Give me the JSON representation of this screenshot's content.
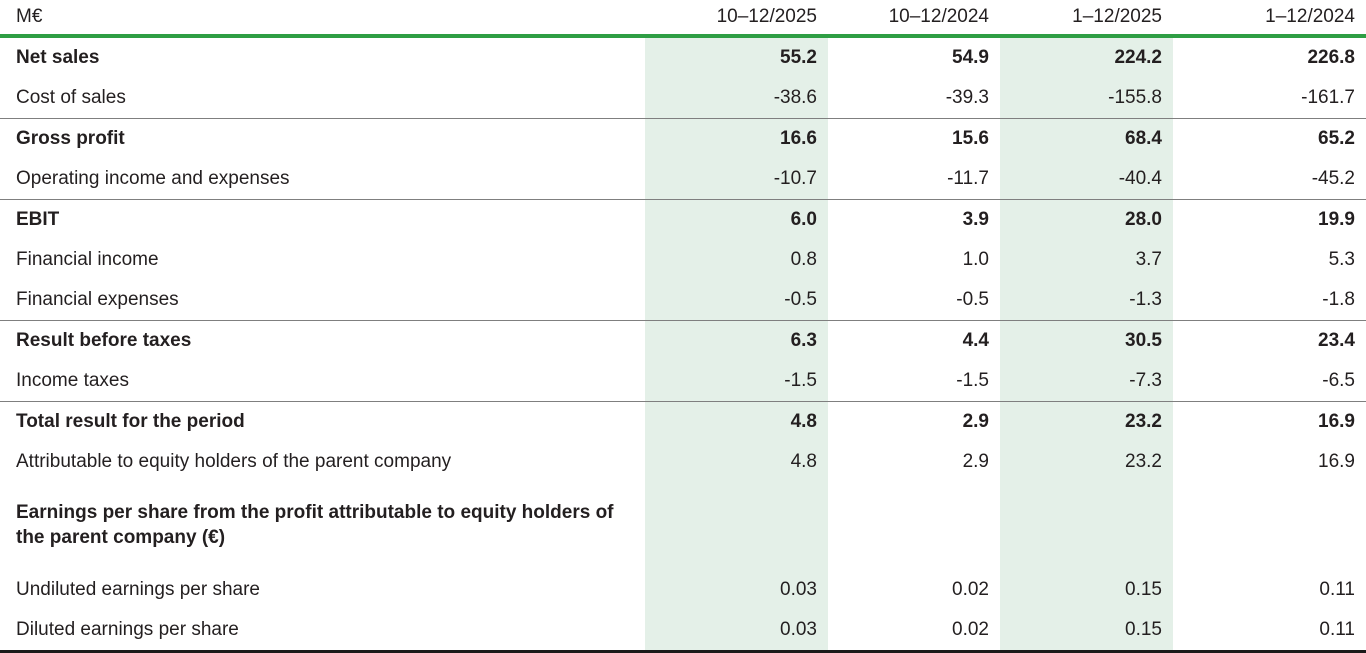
{
  "table": {
    "unit_label": "M€",
    "columns": [
      "10–12/2025",
      "10–12/2024",
      "1–12/2025",
      "1–12/2024"
    ],
    "highlighted_value_columns": [
      0,
      2
    ],
    "rows": [
      {
        "label": "Net sales",
        "bold": true,
        "separator_above": false,
        "values": [
          "55.2",
          "54.9",
          "224.2",
          "226.8"
        ]
      },
      {
        "label": "Cost of sales",
        "bold": false,
        "separator_above": false,
        "values": [
          "-38.6",
          "-39.3",
          "-155.8",
          "-161.7"
        ]
      },
      {
        "label": "Gross profit",
        "bold": true,
        "separator_above": true,
        "values": [
          "16.6",
          "15.6",
          "68.4",
          "65.2"
        ]
      },
      {
        "label": "Operating income and expenses",
        "bold": false,
        "separator_above": false,
        "values": [
          "-10.7",
          "-11.7",
          "-40.4",
          "-45.2"
        ]
      },
      {
        "label": "EBIT",
        "bold": true,
        "separator_above": true,
        "values": [
          "6.0",
          "3.9",
          "28.0",
          "19.9"
        ]
      },
      {
        "label": "Financial income",
        "bold": false,
        "separator_above": false,
        "values": [
          "0.8",
          "1.0",
          "3.7",
          "5.3"
        ]
      },
      {
        "label": "Financial expenses",
        "bold": false,
        "separator_above": false,
        "values": [
          "-0.5",
          "-0.5",
          "-1.3",
          "-1.8"
        ]
      },
      {
        "label": "Result before taxes",
        "bold": true,
        "separator_above": true,
        "values": [
          "6.3",
          "4.4",
          "30.5",
          "23.4"
        ]
      },
      {
        "label": "Income taxes",
        "bold": false,
        "separator_above": false,
        "values": [
          "-1.5",
          "-1.5",
          "-7.3",
          "-6.5"
        ]
      },
      {
        "label": "Total result for the period",
        "bold": true,
        "separator_above": true,
        "values": [
          "4.8",
          "2.9",
          "23.2",
          "16.9"
        ]
      },
      {
        "label": "Attributable to equity holders of the parent company",
        "bold": false,
        "separator_above": false,
        "values": [
          "4.8",
          "2.9",
          "23.2",
          "16.9"
        ]
      },
      {
        "label": "Earnings per share from the profit attributable to equity holders of the parent company (€)",
        "bold": true,
        "separator_above": false,
        "tall": true,
        "values": [
          "",
          "",
          "",
          ""
        ]
      },
      {
        "label": "Undiluted earnings per share",
        "bold": false,
        "separator_above": false,
        "values": [
          "0.03",
          "0.02",
          "0.15",
          "0.11"
        ]
      },
      {
        "label": "Diluted earnings per share",
        "bold": false,
        "separator_above": false,
        "values": [
          "0.03",
          "0.02",
          "0.15",
          "0.11"
        ]
      }
    ],
    "colors": {
      "header_rule": "#2e9e44",
      "column_highlight": "#e4f0e8",
      "row_separator": "#7f7f7f",
      "bottom_rule": "#1a1a1a",
      "text": "#231f20"
    }
  }
}
